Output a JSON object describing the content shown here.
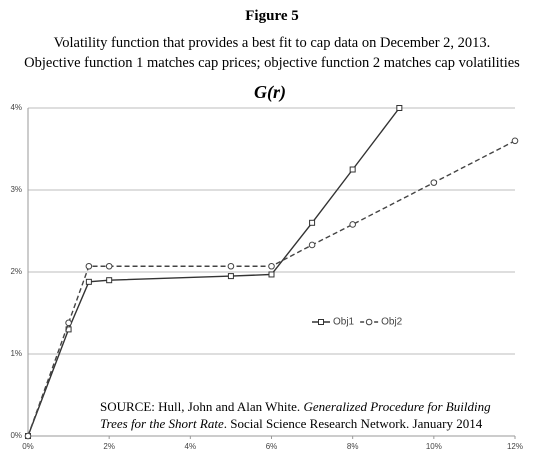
{
  "figure_label": "Figure 5",
  "subtitle_lines": [
    "Volatility function that provides a best fit to cap data on December 2, 2013.",
    "Objective function 1 matches cap prices; objective function 2 matches cap volatilities"
  ],
  "chart_data": {
    "type": "line",
    "title": "G(r)",
    "series": [
      {
        "name": "Obj1",
        "color": "#333333",
        "line_style": "solid",
        "marker": "square",
        "x": [
          0,
          1,
          1.5,
          2,
          5,
          6,
          7,
          8,
          9.15
        ],
        "values": [
          0,
          1.3,
          1.88,
          1.9,
          1.95,
          1.97,
          2.6,
          3.25,
          4
        ]
      },
      {
        "name": "Obj2",
        "color": "#444444",
        "line_style": "dashed",
        "marker": "circle",
        "x": [
          0,
          1,
          1.5,
          2,
          5,
          6,
          7,
          8,
          10,
          12
        ],
        "values": [
          0,
          1.38,
          2.07,
          2.07,
          2.07,
          2.07,
          2.33,
          2.58,
          3.09,
          3.6
        ]
      }
    ],
    "xlim": [
      0,
      12
    ],
    "xticks": [
      {
        "value": 0,
        "label": "0%"
      },
      {
        "value": 2,
        "label": "2%"
      },
      {
        "value": 4,
        "label": "4%"
      },
      {
        "value": 6,
        "label": "6%"
      },
      {
        "value": 8,
        "label": "8%"
      },
      {
        "value": 10,
        "label": "10%"
      },
      {
        "value": 12,
        "label": "12%"
      }
    ],
    "ylim": [
      0,
      4
    ],
    "yticks": [
      {
        "value": 0,
        "label": "0%"
      },
      {
        "value": 1,
        "label": "1%"
      },
      {
        "value": 2,
        "label": "2%"
      },
      {
        "value": 3,
        "label": "3%"
      },
      {
        "value": 4,
        "label": "4%"
      }
    ],
    "grid": true,
    "legend": "center",
    "source": [
      "SOURCE: Hull, John and Alan White. ",
      "Generalized Procedure for Building",
      "Trees for the Short Rate",
      ". Social Science Research Network. January 2014"
    ]
  }
}
